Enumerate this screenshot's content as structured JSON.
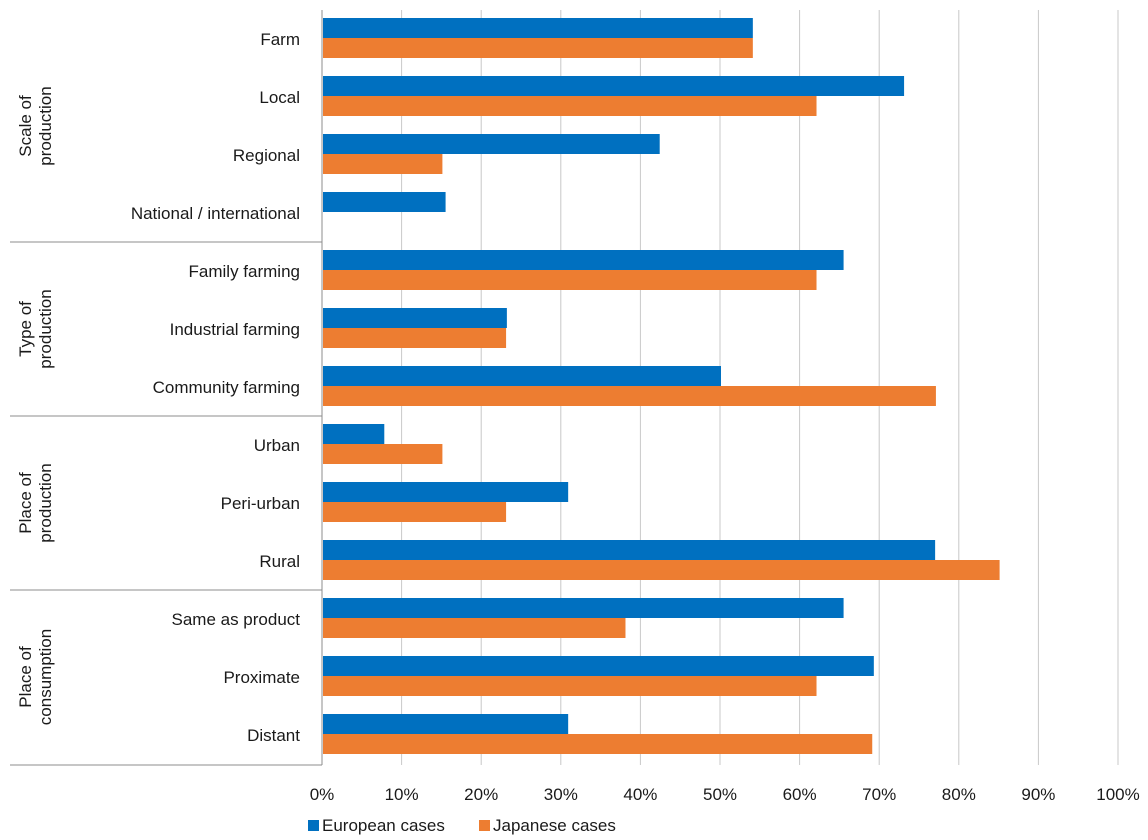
{
  "chart_data": {
    "type": "bar",
    "orientation": "horizontal",
    "grid": true,
    "legend_position": "bottom",
    "xlim": [
      0,
      100
    ],
    "x_ticks": [
      "0%",
      "10%",
      "20%",
      "30%",
      "40%",
      "50%",
      "60%",
      "70%",
      "80%",
      "90%",
      "100%"
    ],
    "groups": [
      {
        "label": "Scale of production",
        "lines": [
          "Scale of",
          "production"
        ],
        "categories": [
          "Farm",
          "Local",
          "Regional",
          "National / international"
        ]
      },
      {
        "label": "Type of production",
        "lines": [
          "Type of",
          "production"
        ],
        "categories": [
          "Family farming",
          "Industrial farming",
          "Community farming"
        ]
      },
      {
        "label": "Place of production",
        "lines": [
          "Place of",
          "production"
        ],
        "categories": [
          "Urban",
          "Peri-urban",
          "Rural"
        ]
      },
      {
        "label": "Place of consumption",
        "lines": [
          "Place of",
          "consumption"
        ],
        "categories": [
          "Same as product",
          "Proximate",
          "Distant"
        ]
      }
    ],
    "categories": [
      "Farm",
      "Local",
      "Regional",
      "National / international",
      "Family farming",
      "Industrial farming",
      "Community farming",
      "Urban",
      "Peri-urban",
      "Rural",
      "Same as product",
      "Proximate",
      "Distant"
    ],
    "series": [
      {
        "name": "European cases",
        "color": "#0070c0",
        "values": [
          54,
          73,
          42.3,
          15.4,
          65.4,
          23.1,
          50,
          7.7,
          30.8,
          76.9,
          65.4,
          69.2,
          30.8
        ]
      },
      {
        "name": "Japanese cases",
        "color": "#ed7d31",
        "values": [
          54,
          62,
          15,
          0,
          62,
          23,
          77,
          15,
          23,
          85,
          38,
          62,
          69
        ]
      }
    ]
  }
}
